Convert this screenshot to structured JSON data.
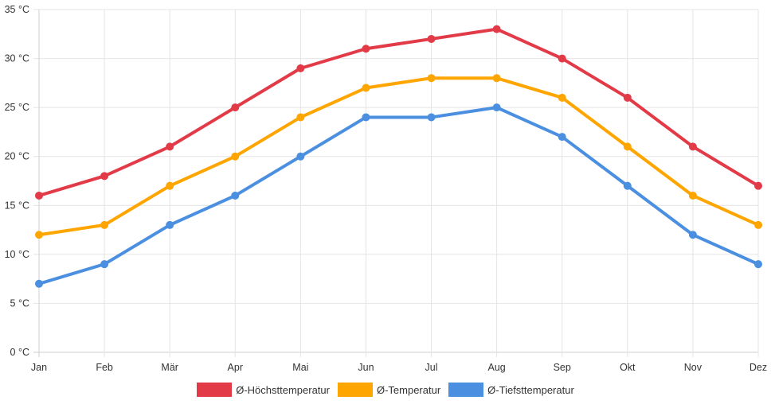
{
  "chart_data": {
    "type": "line",
    "title": "",
    "xlabel": "",
    "ylabel": "",
    "categories": [
      "Jan",
      "Feb",
      "Mär",
      "Apr",
      "Mai",
      "Jun",
      "Jul",
      "Aug",
      "Sep",
      "Okt",
      "Nov",
      "Dez"
    ],
    "ylim": [
      0,
      35
    ],
    "yticks": [
      0,
      5,
      10,
      15,
      20,
      25,
      30,
      35
    ],
    "ytick_labels": [
      "0 °C",
      "5 °C",
      "10 °C",
      "15 °C",
      "20 °C",
      "25 °C",
      "30 °C",
      "35 °C"
    ],
    "grid": true,
    "legend_position": "bottom",
    "series": [
      {
        "name": "Ø-Höchsttemperatur",
        "color": "#e33a48",
        "values": [
          16,
          18,
          21,
          25,
          29,
          31,
          32,
          33,
          30,
          26,
          21,
          17
        ]
      },
      {
        "name": "Ø-Temperatur",
        "color": "#ffa500",
        "values": [
          12,
          13,
          17,
          20,
          24,
          27,
          28,
          28,
          26,
          21,
          16,
          13
        ]
      },
      {
        "name": "Ø-Tiefsttemperatur",
        "color": "#4a8fe0",
        "values": [
          7,
          9,
          13,
          16,
          20,
          24,
          24,
          25,
          22,
          17,
          12,
          9
        ]
      }
    ]
  }
}
